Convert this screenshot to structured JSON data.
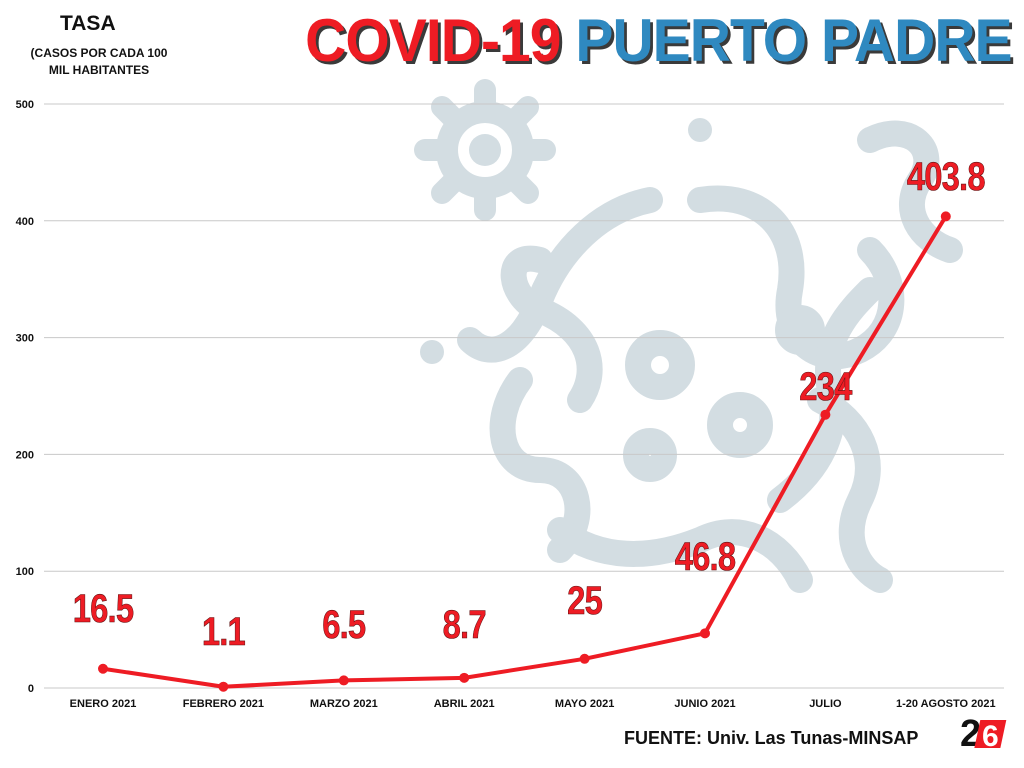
{
  "header": {
    "title_part1": "COVID-19",
    "title_part2": "PUERTO PADRE",
    "ylabel": "TASA",
    "ylabel_sub": "(CASOS POR CADA 100 MIL HABITANTES"
  },
  "footer": {
    "source": "FUENTE: Univ. Las Tunas-MINSAP",
    "logo_text": "26"
  },
  "colors": {
    "line": "#ee1c24",
    "title_red": "#ee1c24",
    "title_blue": "#2f89c0",
    "grid": "#c8c8c8",
    "watermark": "#d3dde2"
  },
  "chart_data": {
    "type": "line",
    "categories": [
      "ENERO 2021",
      "FEBRERO 2021",
      "MARZO 2021",
      "ABRIL 2021",
      "MAYO 2021",
      "JUNIO 2021",
      "JULIO",
      "1-20 AGOSTO 2021"
    ],
    "values": [
      16.5,
      1.1,
      6.5,
      8.7,
      25,
      46.8,
      234,
      403.8
    ],
    "data_labels": [
      "16.5",
      "1.1",
      "6.5",
      "8.7",
      "25",
      "46.8",
      "234",
      "403.8"
    ],
    "yticks": [
      "0",
      "100",
      "200",
      "300",
      "400",
      "500"
    ],
    "ylim": [
      0,
      500
    ],
    "grid": true
  }
}
